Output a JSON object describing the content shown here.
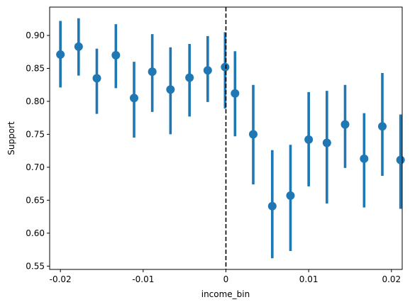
{
  "chart_data": {
    "type": "scatter",
    "xlabel": "income_bin",
    "ylabel": "Support",
    "xlim": [
      -0.0213,
      0.0213
    ],
    "ylim": [
      0.545,
      0.943
    ],
    "x_ticks": [
      -0.02,
      -0.01,
      0,
      0.01,
      0.02
    ],
    "x_tick_labels": [
      "-0.02",
      "-0.01",
      "0",
      "0.01",
      "0.02"
    ],
    "y_ticks": [
      0.55,
      0.6,
      0.65,
      0.7,
      0.75,
      0.8,
      0.85,
      0.9
    ],
    "y_tick_labels": [
      "0.55",
      "0.60",
      "0.65",
      "0.70",
      "0.75",
      "0.80",
      "0.85",
      "0.90"
    ],
    "cutoff_x": 0,
    "color": "#1f77b4",
    "points": [
      {
        "x": -0.02,
        "y": 0.871,
        "lo": 0.821,
        "hi": 0.922
      },
      {
        "x": -0.0178,
        "y": 0.883,
        "lo": 0.839,
        "hi": 0.926
      },
      {
        "x": -0.0156,
        "y": 0.835,
        "lo": 0.781,
        "hi": 0.88
      },
      {
        "x": -0.0133,
        "y": 0.87,
        "lo": 0.82,
        "hi": 0.917
      },
      {
        "x": -0.0111,
        "y": 0.805,
        "lo": 0.745,
        "hi": 0.86
      },
      {
        "x": -0.0089,
        "y": 0.845,
        "lo": 0.784,
        "hi": 0.902
      },
      {
        "x": -0.0067,
        "y": 0.818,
        "lo": 0.75,
        "hi": 0.882
      },
      {
        "x": -0.0044,
        "y": 0.836,
        "lo": 0.777,
        "hi": 0.887
      },
      {
        "x": -0.0022,
        "y": 0.847,
        "lo": 0.799,
        "hi": 0.899
      },
      {
        "x": -0.0001,
        "y": 0.852,
        "lo": 0.789,
        "hi": 0.905
      },
      {
        "x": 0.0011,
        "y": 0.812,
        "lo": 0.747,
        "hi": 0.876
      },
      {
        "x": 0.0033,
        "y": 0.75,
        "lo": 0.674,
        "hi": 0.825
      },
      {
        "x": 0.0056,
        "y": 0.641,
        "lo": 0.562,
        "hi": 0.726
      },
      {
        "x": 0.0078,
        "y": 0.657,
        "lo": 0.573,
        "hi": 0.734
      },
      {
        "x": 0.01,
        "y": 0.742,
        "lo": 0.671,
        "hi": 0.814
      },
      {
        "x": 0.0122,
        "y": 0.737,
        "lo": 0.645,
        "hi": 0.816
      },
      {
        "x": 0.0144,
        "y": 0.765,
        "lo": 0.699,
        "hi": 0.825
      },
      {
        "x": 0.0167,
        "y": 0.713,
        "lo": 0.639,
        "hi": 0.782
      },
      {
        "x": 0.0189,
        "y": 0.762,
        "lo": 0.687,
        "hi": 0.843
      },
      {
        "x": 0.0211,
        "y": 0.711,
        "lo": 0.637,
        "hi": 0.78
      }
    ]
  }
}
